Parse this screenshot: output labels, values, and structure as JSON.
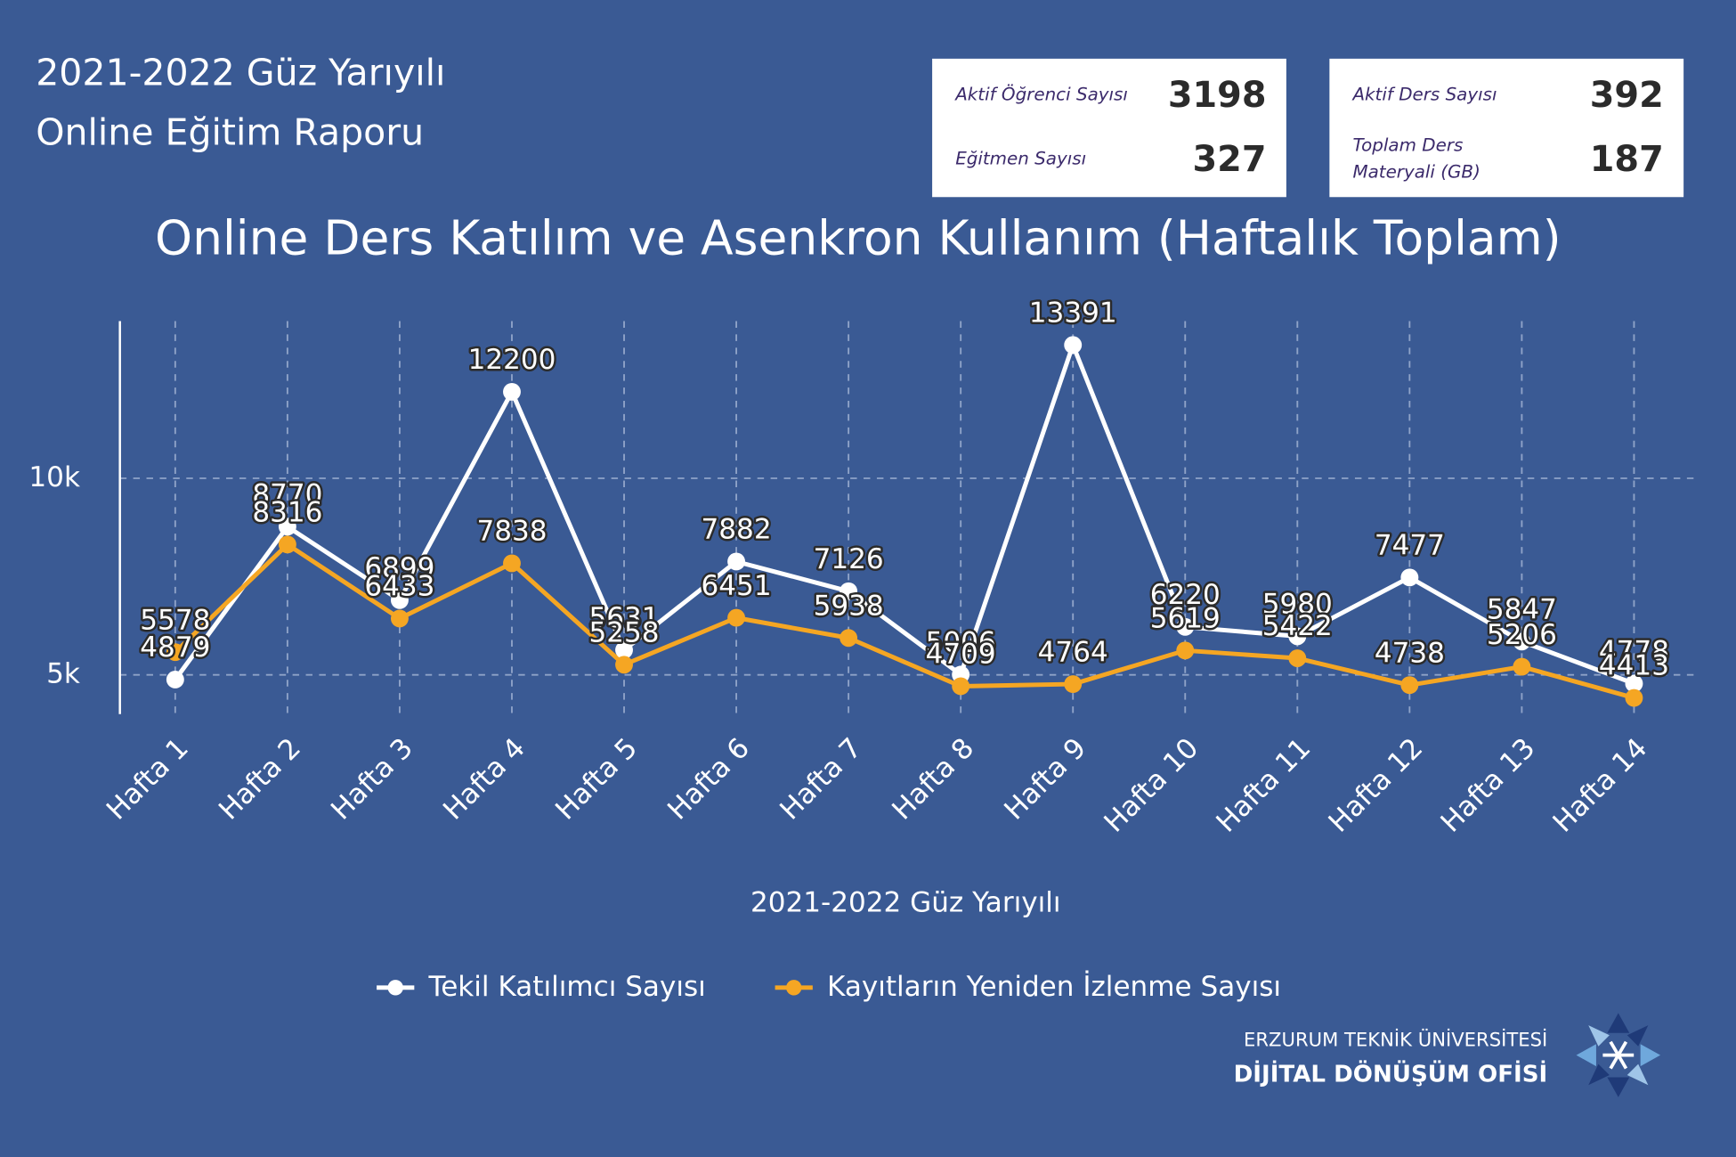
{
  "header": {
    "title_line1": "2021-2022 Güz Yarıyılı",
    "title_line2": "Online Eğitim Raporu"
  },
  "stats": [
    [
      {
        "label": [
          "Aktif Öğrenci Sayısı"
        ],
        "value": 3198
      },
      {
        "label": [
          "Eğitmen Sayısı"
        ],
        "value": 327
      }
    ],
    [
      {
        "label": [
          "Aktif Ders Sayısı"
        ],
        "value": 392
      },
      {
        "label": [
          "Toplam Ders",
          "Materyali (GB)"
        ],
        "value": 187
      }
    ]
  ],
  "chart_data": {
    "type": "line",
    "title": "Online Ders Katılım ve Asenkron Kullanım (Haftalık Toplam)",
    "x_label": "2021-2022 Güz Yarıyılı",
    "categories": [
      "Hafta 1",
      "Hafta 2",
      "Hafta 3",
      "Hafta 4",
      "Hafta 5",
      "Hafta 6",
      "Hafta 7",
      "Hafta 8",
      "Hafta 9",
      "Hafta 10",
      "Hafta 11",
      "Hafta 12",
      "Hafta 13",
      "Hafta 14"
    ],
    "series": [
      {
        "name": "Tekil Katılımcı Sayısı",
        "color": "#ffffff",
        "values": [
          4879,
          8770,
          6899,
          12200,
          5631,
          7882,
          7126,
          5006,
          13391,
          6220,
          5980,
          7477,
          5847,
          4778
        ]
      },
      {
        "name": "Kayıtların Yeniden İzlenme Sayısı",
        "color": "#f5a623",
        "values": [
          5578,
          8316,
          6433,
          7838,
          5258,
          6451,
          5938,
          4709,
          4764,
          5619,
          5422,
          4738,
          5206,
          4413
        ]
      }
    ],
    "ylim": [
      4000,
      14000
    ],
    "yticks": [
      {
        "value": 5000,
        "label": "5k"
      },
      {
        "value": 10000,
        "label": "10k"
      }
    ],
    "grid": true,
    "legend": "bottom"
  },
  "footer": {
    "org": "ERZURUM TEKNİK ÜNİVERSİTESİ",
    "unit": "DİJİTAL DÖNÜŞÜM OFİSİ"
  }
}
